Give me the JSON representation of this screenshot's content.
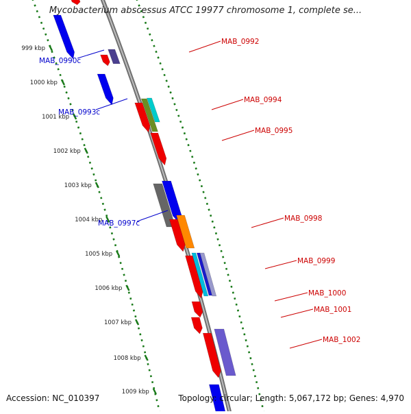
{
  "title": "Mycobacterium abscessus ATCC 19977 chromosome 1, complete se...",
  "footer": {
    "accession": "Accession: NC_010397",
    "summary": "Topology: circular; Length: 5,067,172 bp; Genes: 4,970"
  },
  "ticks": [
    "999 kbp",
    "1000 kbp",
    "1001 kbp",
    "1002 kbp",
    "1003 kbp",
    "1004 kbp",
    "1005 kbp",
    "1006 kbp",
    "1007 kbp",
    "1008 kbp",
    "1009 kbp"
  ],
  "colors": {
    "forward_label": "#cc0000",
    "reverse_label": "#0000cc",
    "backbone": "#8c8c8c",
    "track_dots": "#1a7a1a"
  },
  "gene_labels": [
    {
      "text": "MAB_0990c",
      "strand": "reverse"
    },
    {
      "text": "MAB_0992",
      "strand": "forward"
    },
    {
      "text": "MAB_0993c",
      "strand": "reverse"
    },
    {
      "text": "MAB_0994",
      "strand": "forward"
    },
    {
      "text": "MAB_0995",
      "strand": "forward"
    },
    {
      "text": "MAB_0997c",
      "strand": "reverse"
    },
    {
      "text": "MAB_0998",
      "strand": "forward"
    },
    {
      "text": "MAB_0999",
      "strand": "forward"
    },
    {
      "text": "MAB_1000",
      "strand": "forward"
    },
    {
      "text": "MAB_1001",
      "strand": "forward"
    },
    {
      "text": "MAB_1002",
      "strand": "forward"
    }
  ],
  "features": [
    {
      "name": "reverse-gene-0990c",
      "color": "#0000ee"
    },
    {
      "name": "forward-gene-0992",
      "color": "#ee0000"
    },
    {
      "name": "feature-0992-purple",
      "color": "#4b3f8f"
    },
    {
      "name": "reverse-gene-0993c",
      "color": "#0000ee"
    },
    {
      "name": "forward-gene-0994",
      "color": "#ee0000"
    },
    {
      "name": "feature-0994-olive",
      "color": "#6b8e23"
    },
    {
      "name": "feature-0994-cyan",
      "color": "#00cccc"
    },
    {
      "name": "forward-gene-0995",
      "color": "#ee0000"
    },
    {
      "name": "feature-grey",
      "color": "#666666"
    },
    {
      "name": "reverse-gene-0997c",
      "color": "#0000ee"
    },
    {
      "name": "forward-gene-0998",
      "color": "#ee0000"
    },
    {
      "name": "feature-0998-orange",
      "color": "#ff8800"
    },
    {
      "name": "forward-gene-0999",
      "color": "#ee0000"
    },
    {
      "name": "feature-0999-cyan",
      "color": "#00bbdd"
    },
    {
      "name": "feature-0999-blue",
      "color": "#1a1acc"
    },
    {
      "name": "feature-0999-lavender",
      "color": "#9999cc"
    },
    {
      "name": "forward-gene-1000",
      "color": "#ee0000"
    },
    {
      "name": "forward-gene-1001",
      "color": "#ee0000"
    },
    {
      "name": "forward-gene-1002",
      "color": "#ee0000"
    },
    {
      "name": "feature-1002-purple",
      "color": "#6a5acd"
    },
    {
      "name": "forward-gene-top",
      "color": "#ee0000"
    },
    {
      "name": "reverse-gene-bottom",
      "color": "#0000ee"
    }
  ]
}
